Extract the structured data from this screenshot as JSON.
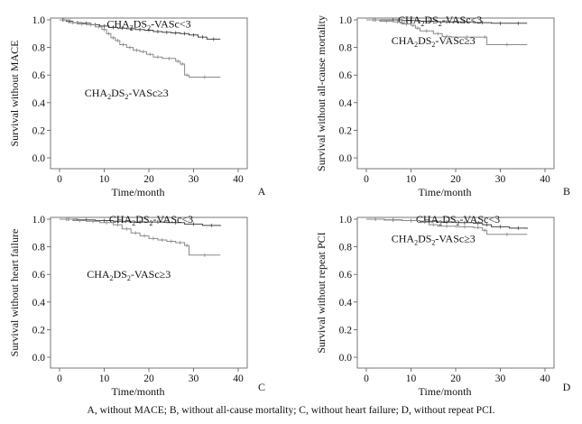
{
  "figure": {
    "caption": "A, without MACE; B, without all-cause mortality; C, without heart failure; D, without repeat PCI."
  },
  "chart_data": [
    {
      "type": "line",
      "panel": "A",
      "xlabel": "Time/month",
      "ylabel": "Survival without MACE",
      "xlim": [
        0,
        40
      ],
      "ylim": [
        0.0,
        1.0
      ],
      "xticks": [
        "0",
        "10",
        "20",
        "30",
        "40"
      ],
      "yticks": [
        "0.0",
        "0.2",
        "0.4",
        "0.6",
        "0.8",
        "1.0"
      ],
      "series": [
        {
          "name": "CHA2DS2-VASc<3",
          "label_main": "CHA",
          "label_parts": [
            "2",
            "DS",
            "2",
            "-VASc<3"
          ],
          "label_at": [
            20,
            0.97
          ],
          "x": [
            0,
            1.5,
            3,
            5,
            7,
            9,
            11,
            13,
            15,
            17,
            19,
            21,
            23,
            25,
            27,
            29,
            31,
            33,
            36
          ],
          "y": [
            1.0,
            0.99,
            0.98,
            0.975,
            0.965,
            0.955,
            0.945,
            0.94,
            0.935,
            0.93,
            0.925,
            0.915,
            0.91,
            0.905,
            0.9,
            0.89,
            0.875,
            0.86,
            0.86
          ]
        },
        {
          "name": "CHA2DS2-VASc≥3",
          "label_main": "CHA",
          "label_parts": [
            "2",
            "DS",
            "2",
            "-VASc≥3"
          ],
          "label_at": [
            15,
            0.47
          ],
          "x": [
            0,
            2,
            4,
            6,
            8,
            9.5,
            10.5,
            11.5,
            12.5,
            13.5,
            15,
            16.5,
            18,
            19.5,
            21,
            23,
            26,
            27,
            28,
            29,
            36
          ],
          "y": [
            1.0,
            0.98,
            0.97,
            0.965,
            0.95,
            0.93,
            0.9,
            0.87,
            0.85,
            0.82,
            0.8,
            0.78,
            0.77,
            0.75,
            0.73,
            0.72,
            0.7,
            0.68,
            0.6,
            0.585,
            0.585
          ]
        }
      ]
    },
    {
      "type": "line",
      "panel": "B",
      "xlabel": "Time/month",
      "ylabel": "Survival without all-cause mortality",
      "xlim": [
        0,
        40
      ],
      "ylim": [
        0.0,
        1.0
      ],
      "xticks": [
        "0",
        "10",
        "20",
        "30",
        "40"
      ],
      "yticks": [
        "0.0",
        "0.2",
        "0.4",
        "0.6",
        "0.8",
        "1.0"
      ],
      "series": [
        {
          "name": "CHA2DS2-VASc<3",
          "label_main": "CHA",
          "label_parts": [
            "2",
            "DS",
            "2",
            "-VASc<3"
          ],
          "label_at": [
            16.5,
            1.0
          ],
          "x": [
            0,
            4,
            8,
            12,
            16,
            20,
            24,
            28,
            32,
            36
          ],
          "y": [
            1.0,
            1.0,
            0.995,
            0.99,
            0.985,
            0.985,
            0.98,
            0.975,
            0.975,
            0.975
          ]
        },
        {
          "name": "CHA2DS2-VASc≥3",
          "label_main": "CHA",
          "label_parts": [
            "2",
            "DS",
            "2",
            "-VASc≥3"
          ],
          "label_at": [
            15,
            0.85
          ],
          "x": [
            0,
            3,
            6,
            8,
            10,
            11,
            12,
            15,
            17,
            19,
            26,
            27,
            36
          ],
          "y": [
            1.0,
            0.99,
            0.985,
            0.97,
            0.96,
            0.94,
            0.92,
            0.9,
            0.88,
            0.875,
            0.875,
            0.82,
            0.82
          ]
        }
      ]
    },
    {
      "type": "line",
      "panel": "C",
      "xlabel": "Time/month",
      "ylabel": "Survival without heart failure",
      "xlim": [
        0,
        40
      ],
      "ylim": [
        0.0,
        1.0
      ],
      "xticks": [
        "0",
        "10",
        "20",
        "30",
        "40"
      ],
      "yticks": [
        "0.0",
        "0.2",
        "0.4",
        "0.6",
        "0.8",
        "1.0"
      ],
      "series": [
        {
          "name": "CHA2DS2-VASc<3",
          "label_main": "CHA",
          "label_parts": [
            "2",
            "DS",
            "2",
            "-VASc<3"
          ],
          "label_at": [
            20.5,
            1.0
          ],
          "x": [
            0,
            4,
            8,
            12,
            16,
            20,
            24,
            28,
            32,
            36
          ],
          "y": [
            1.0,
            0.995,
            0.99,
            0.985,
            0.98,
            0.98,
            0.975,
            0.965,
            0.955,
            0.95
          ]
        },
        {
          "name": "CHA2DS2-VASc≥3",
          "label_main": "CHA",
          "label_parts": [
            "2",
            "DS",
            "2",
            "-VASc≥3"
          ],
          "label_at": [
            15.5,
            0.6
          ],
          "x": [
            0,
            3,
            6,
            9,
            12,
            14,
            16,
            18,
            20,
            22,
            24,
            26,
            28,
            29,
            36
          ],
          "y": [
            1.0,
            0.99,
            0.985,
            0.975,
            0.96,
            0.93,
            0.9,
            0.88,
            0.86,
            0.85,
            0.84,
            0.83,
            0.81,
            0.74,
            0.74
          ]
        }
      ]
    },
    {
      "type": "line",
      "panel": "D",
      "xlabel": "Time/month",
      "ylabel": "Survival without repeat PCI",
      "xlim": [
        0,
        40
      ],
      "ylim": [
        0.0,
        1.0
      ],
      "xticks": [
        "0",
        "10",
        "20",
        "30",
        "40"
      ],
      "yticks": [
        "0.0",
        "0.2",
        "0.4",
        "0.6",
        "0.8",
        "1.0"
      ],
      "series": [
        {
          "name": "CHA2DS2-VASc<3",
          "label_main": "CHA",
          "label_parts": [
            "2",
            "DS",
            "2",
            "-VASc<3"
          ],
          "label_at": [
            20.5,
            1.0
          ],
          "x": [
            0,
            4,
            8,
            12,
            16,
            20,
            24,
            26,
            28,
            32,
            36
          ],
          "y": [
            1.0,
            0.995,
            0.99,
            0.985,
            0.98,
            0.975,
            0.97,
            0.96,
            0.945,
            0.935,
            0.93
          ]
        },
        {
          "name": "CHA2DS2-VASc≥3",
          "label_main": "CHA",
          "label_parts": [
            "2",
            "DS",
            "2",
            "-VASc≥3"
          ],
          "label_at": [
            15,
            0.86
          ],
          "x": [
            0,
            4,
            8,
            12,
            14,
            16,
            20,
            24,
            26,
            27,
            36
          ],
          "y": [
            1.0,
            0.995,
            0.99,
            0.98,
            0.96,
            0.95,
            0.945,
            0.94,
            0.92,
            0.89,
            0.89
          ]
        }
      ]
    }
  ]
}
